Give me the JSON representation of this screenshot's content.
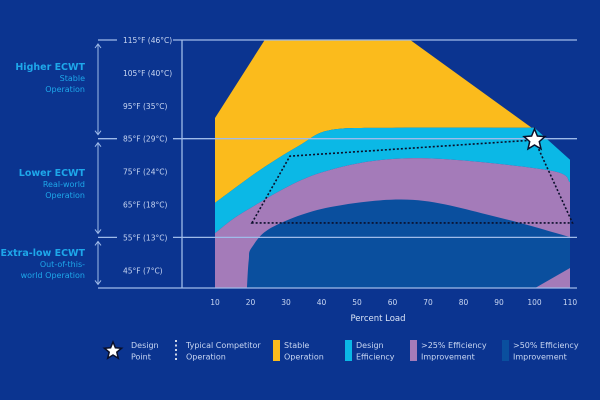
{
  "chart_data": {
    "type": "area",
    "xlabel": "Percent Load",
    "x_ticks": [
      "10",
      "20",
      "30",
      "40",
      "50",
      "60",
      "70",
      "80",
      "90",
      "100",
      "110"
    ],
    "xlim": [
      10,
      110
    ],
    "ylim": [
      39.5,
      115
    ],
    "y_ticks": [
      {
        "value": 115,
        "label": "115°F (46°C)"
      },
      {
        "value": 105,
        "label": "105°F (40°C)"
      },
      {
        "value": 95,
        "label": "95°F (35°C)"
      },
      {
        "value": 85,
        "label": "85°F (29°C)"
      },
      {
        "value": 75,
        "label": "75°F (24°C)"
      },
      {
        "value": 65,
        "label": "65°F (18°C)"
      },
      {
        "value": 55,
        "label": "55°F (13°C)"
      },
      {
        "value": 45,
        "label": "45°F (7°C)"
      }
    ],
    "y_groups": [
      {
        "title": "Higher ECWT",
        "lines": [
          "Stable",
          "Operation"
        ],
        "range": [
          85,
          115
        ]
      },
      {
        "title": "Lower ECWT",
        "lines": [
          "Real-world",
          "Operation"
        ],
        "range": [
          55,
          85
        ]
      },
      {
        "title": "Extra-low ECWT",
        "lines": [
          "Out-of-this-",
          "world Operation"
        ],
        "range": [
          39.5,
          55
        ]
      }
    ],
    "regions": [
      {
        "name": "Stable Operation",
        "color": "#fbbb1c",
        "top": [
          [
            10,
            91.3
          ],
          [
            24,
            115
          ],
          [
            65,
            115
          ],
          [
            100,
            87.7
          ],
          [
            104,
            84
          ]
        ],
        "bottom": [
          [
            10,
            65.5
          ],
          [
            22.7,
            75.5
          ],
          [
            34,
            83.1
          ],
          [
            42.4,
            87.6
          ],
          [
            60,
            88.3
          ],
          [
            100,
            88.3
          ]
        ]
      },
      {
        "name": "Design Efficiency",
        "color": "#0bb8e6",
        "top": [
          [
            10,
            65.5
          ],
          [
            22.7,
            75.5
          ],
          [
            34,
            83.1
          ],
          [
            42.4,
            87.6
          ],
          [
            60,
            88.3
          ],
          [
            100,
            88.3
          ],
          [
            110,
            78.6
          ]
        ],
        "bottom": [
          [
            10,
            56.3
          ],
          [
            19,
            63.3
          ],
          [
            39.6,
            74.6
          ],
          [
            65.8,
            79.1
          ],
          [
            103.5,
            75.5
          ],
          [
            110,
            71.8
          ]
        ]
      },
      {
        "name": ">25% Efficiency Improvement",
        "color": "#a47bb9",
        "top": [
          [
            10,
            56.3
          ],
          [
            19,
            63.3
          ],
          [
            39.6,
            74.6
          ],
          [
            65.8,
            79.1
          ],
          [
            103.5,
            75.5
          ],
          [
            110,
            71.8
          ]
        ],
        "bottom": [
          [
            10,
            39.5
          ],
          [
            110,
            39.5
          ]
        ]
      },
      {
        "name": ">50% Efficiency Improvement",
        "color": "#0a4f9e",
        "top": [
          [
            19,
            39.5
          ],
          [
            19.5,
            48
          ],
          [
            20.4,
            52
          ],
          [
            26.3,
            58.2
          ],
          [
            42.4,
            64.2
          ],
          [
            65.8,
            66.4
          ],
          [
            89.4,
            61.2
          ],
          [
            110,
            55.1
          ]
        ],
        "bottom": [
          [
            110,
            45.7
          ],
          [
            100,
            39.5
          ]
        ]
      }
    ],
    "competitor_operation": [
      [
        20.4,
        59.4
      ],
      [
        31.1,
        79.7
      ],
      [
        100,
        84.6
      ],
      [
        110.7,
        59.4
      ]
    ],
    "design_point": {
      "x": 100,
      "y": 84.6
    },
    "legend": [
      {
        "label": [
          "Design",
          "Point"
        ],
        "symbol": "star-icon",
        "color": "#ffffff"
      },
      {
        "label": [
          "Typical Competitor",
          "Operation"
        ],
        "symbol": "dotted-line",
        "color": "#ffffff"
      },
      {
        "label": [
          "Stable",
          "Operation"
        ],
        "color": "#fbbb1c"
      },
      {
        "label": [
          "Design",
          "Efficiency"
        ],
        "color": "#0bb8e6"
      },
      {
        "label": [
          ">25% Efficiency",
          "Improvement"
        ],
        "color": "#a47bb9"
      },
      {
        "label": [
          ">50% Efficiency",
          "Improvement"
        ],
        "color": "#0a4f9e"
      }
    ],
    "legend_position": "bottom",
    "colors": {
      "background": "#0b3490",
      "gridline": "#9fbbe9",
      "group_title": "#1ea7ea"
    }
  }
}
